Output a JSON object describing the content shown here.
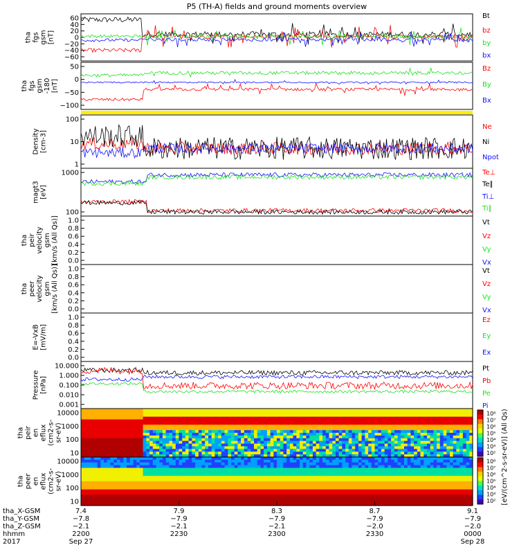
{
  "title": "P5 (TH-A) fields and ground moments overview",
  "colors": {
    "black": "#000000",
    "red": "#ff0000",
    "green": "#1fe01f",
    "blue": "#1010ff",
    "yellow": "#ffee00"
  },
  "chart_data": [
    {
      "id": "fgs",
      "type": "line",
      "ylabel_lines": [
        "tha",
        "fgs",
        "gsm",
        "[nT]"
      ],
      "ylim": [
        -60,
        60
      ],
      "yticks": [
        "60",
        "40",
        "20",
        "0",
        "−20",
        "−40",
        "−60"
      ],
      "series": [
        {
          "name": "Bt",
          "color": "#000000",
          "start": 45,
          "before": 45,
          "after": 8,
          "shift": 0.155,
          "noise": 7,
          "spikes": 30
        },
        {
          "name": "bz",
          "color": "#ff0000",
          "start": -33,
          "before": -33,
          "after": 2,
          "shift": 0.155,
          "noise": 5,
          "spikes": 30
        },
        {
          "name": "by",
          "color": "#1fe01f",
          "start": 3,
          "before": 3,
          "after": 2,
          "shift": 0.155,
          "noise": 4,
          "spikes": 20
        },
        {
          "name": "bx",
          "color": "#1010ff",
          "start": -7,
          "before": -7,
          "after": -6,
          "shift": 0.155,
          "noise": 4,
          "spikes": 20
        }
      ]
    },
    {
      "id": "fgs_gsm2",
      "type": "line",
      "ylabel_lines": [
        "tha",
        "fgs",
        "gsm",
        "-180",
        "[nT]"
      ],
      "ylim": [
        -130,
        70
      ],
      "yticks": [
        "50",
        "0",
        "−50",
        "−100"
      ],
      "series": [
        {
          "name": "Bz",
          "color": "#ff0000",
          "start": -88,
          "before": -88,
          "after": -45,
          "shift": 0.16,
          "noise": 6,
          "spikes": 25
        },
        {
          "name": "By",
          "color": "#1fe01f",
          "start": 15,
          "before": 15,
          "after": 25,
          "shift": 0.16,
          "noise": 7,
          "spikes": 15
        },
        {
          "name": "Bx",
          "color": "#1010ff",
          "start": -15,
          "before": -15,
          "after": -15,
          "shift": 0.16,
          "noise": 3,
          "spikes": 10
        }
      ]
    },
    {
      "id": "density",
      "type": "line",
      "log": true,
      "ylabel_lines": [
        "Density",
        "[cm-3]"
      ],
      "ylim": [
        1,
        120
      ],
      "yticks": [
        "100",
        "10",
        "1"
      ],
      "series": [
        {
          "name": "Ne",
          "color": "#ff0000",
          "start": 9,
          "before": 9,
          "after": 6,
          "shift": 0.16,
          "noise": 0.25,
          "spikes": 0
        },
        {
          "name": "Ni",
          "color": "#000000",
          "start": 18,
          "before": 18,
          "after": 6,
          "shift": 0.16,
          "noise": 0.45,
          "spikes": 0
        },
        {
          "name": "Npot",
          "color": "#1010ff",
          "start": 4,
          "before": 4,
          "after": 6,
          "shift": 0.16,
          "noise": 0.2,
          "spikes": 0
        }
      ]
    },
    {
      "id": "temp",
      "type": "line",
      "log": true,
      "ylabel_lines": [
        "magt3",
        "[eV]"
      ],
      "ylim": [
        15,
        6000
      ],
      "yticks": [
        "1000",
        "100"
      ],
      "series": [
        {
          "name": "Te⊥",
          "color": "#ff0000",
          "start": 90,
          "before": 90,
          "after": 30,
          "shift": 0.17,
          "noise": 0.12,
          "spikes": 0
        },
        {
          "name": "Te∥",
          "color": "#000000",
          "start": 80,
          "before": 80,
          "after": 25,
          "shift": 0.17,
          "noise": 0.12,
          "spikes": 0
        },
        {
          "name": "Ti⊥",
          "color": "#1010ff",
          "start": 1100,
          "before": 1100,
          "after": 2600,
          "shift": 0.17,
          "noise": 0.12,
          "spikes": 0
        },
        {
          "name": "Ti∥",
          "color": "#1fe01f",
          "start": 900,
          "before": 900,
          "after": 2000,
          "shift": 0.17,
          "noise": 0.12,
          "spikes": 0
        }
      ]
    },
    {
      "id": "peir_vel",
      "type": "line",
      "ylabel_lines": [
        "tha",
        "peir",
        "velocity",
        "gsm",
        "[km/s (All Qs)]"
      ],
      "ylim": [
        0,
        1
      ],
      "yticks": [
        "1.0",
        "0.8",
        "0.6",
        "0.4",
        "0.2",
        "0.0"
      ],
      "series": [
        {
          "name": "Vt",
          "color": "#000000"
        },
        {
          "name": "Vz",
          "color": "#ff0000"
        },
        {
          "name": "Vy",
          "color": "#1fe01f"
        },
        {
          "name": "Vx",
          "color": "#1010ff"
        }
      ]
    },
    {
      "id": "peer_vel",
      "type": "line",
      "ylabel_lines": [
        "tha",
        "peer",
        "velocity",
        "gsm",
        "[km/s (All Qs)]"
      ],
      "ylim": [
        0,
        1
      ],
      "yticks": [
        "1.0",
        "0.8",
        "0.6",
        "0.4",
        "0.2",
        "0.0"
      ],
      "series": [
        {
          "name": "Vt",
          "color": "#000000"
        },
        {
          "name": "Vz",
          "color": "#ff0000"
        },
        {
          "name": "Vy",
          "color": "#1fe01f"
        },
        {
          "name": "Vx",
          "color": "#1010ff"
        }
      ]
    },
    {
      "id": "efield",
      "type": "line",
      "ylabel_lines": [
        "E=-VxB",
        "[mV/m]"
      ],
      "ylim": [
        0,
        1
      ],
      "yticks": [
        "1.0",
        "0.8",
        "0.6",
        "0.4",
        "0.2",
        "0.0"
      ],
      "series": [
        {
          "name": "Ez",
          "color": "#ff0000"
        },
        {
          "name": "Ey",
          "color": "#1fe01f"
        },
        {
          "name": "Ex",
          "color": "#1010ff"
        }
      ]
    },
    {
      "id": "pressure",
      "type": "line",
      "log": true,
      "ylabel_lines": [
        "Pressure",
        "[nPa]"
      ],
      "ylim": [
        0.001,
        10
      ],
      "yticks": [
        "10.000",
        "1.000",
        "0.100",
        "0.010",
        "0.001"
      ],
      "series": [
        {
          "name": "Pt",
          "color": "#000000",
          "start": 1.8,
          "before": 1.8,
          "after": 1.1,
          "shift": 0.16,
          "noise": 0.2,
          "spikes": 0
        },
        {
          "name": "Pb",
          "color": "#ff0000",
          "start": 1.7,
          "before": 1.7,
          "after": 0.09,
          "shift": 0.16,
          "noise": 0.3,
          "spikes": 0
        },
        {
          "name": "Pe",
          "color": "#1fe01f",
          "start": 0.13,
          "before": 0.13,
          "after": 0.028,
          "shift": 0.16,
          "noise": 0.12,
          "spikes": 0
        },
        {
          "name": "Pi",
          "color": "#1010ff",
          "start": 0.3,
          "before": 0.3,
          "after": 0.5,
          "shift": 0.16,
          "noise": 0.15,
          "spikes": 0
        }
      ]
    },
    {
      "id": "peir_spec",
      "type": "heatmap",
      "ylabel_lines": [
        "tha",
        "peir",
        "en",
        "eflux",
        "(cm2-s-",
        "sr-eV)"
      ],
      "ylim": [
        5,
        20000
      ],
      "yticks": [
        "10000",
        "1000",
        "100",
        "10"
      ]
    },
    {
      "id": "peer_spec",
      "type": "heatmap",
      "ylabel_lines": [
        "tha",
        "peer",
        "en",
        "eflux",
        "(cm2-s-",
        "sr-eV)"
      ],
      "ylim": [
        5,
        20000
      ],
      "yticks": [
        "10000",
        "1000",
        "100",
        "10"
      ]
    }
  ],
  "colorbar": {
    "label": "[eV/(cm^2-s-sr-eV)] (All Qs)",
    "ticks_top": [
      "10⁸",
      "10⁷",
      "10⁶",
      "10⁵",
      "10⁴",
      "10³",
      "10²"
    ],
    "ticks_bottom": [
      "10⁸",
      "10⁷",
      "10⁶",
      "10⁵",
      "10⁴",
      "10³",
      "10²"
    ]
  },
  "xaxis": {
    "row_labels": [
      "tha_X-GSM",
      "tha_Y-GSM",
      "tha_Z-GSM",
      "hhmm",
      "2017"
    ],
    "ticks": [
      {
        "X": "7.4",
        "Y": "−7.8",
        "Z": "−2.1",
        "hhmm": "2200",
        "date": "Sep 27"
      },
      {
        "X": "7.9",
        "Y": "−7.9",
        "Z": "−2.1",
        "hhmm": "2230",
        "date": ""
      },
      {
        "X": "8.3",
        "Y": "−7.9",
        "Z": "−2.1",
        "hhmm": "2300",
        "date": ""
      },
      {
        "X": "8.7",
        "Y": "−7.9",
        "Z": "−2.0",
        "hhmm": "2330",
        "date": ""
      },
      {
        "X": "9.1",
        "Y": "−7.9",
        "Z": "−2.0",
        "hhmm": "0000",
        "date": "Sep 28"
      }
    ]
  }
}
